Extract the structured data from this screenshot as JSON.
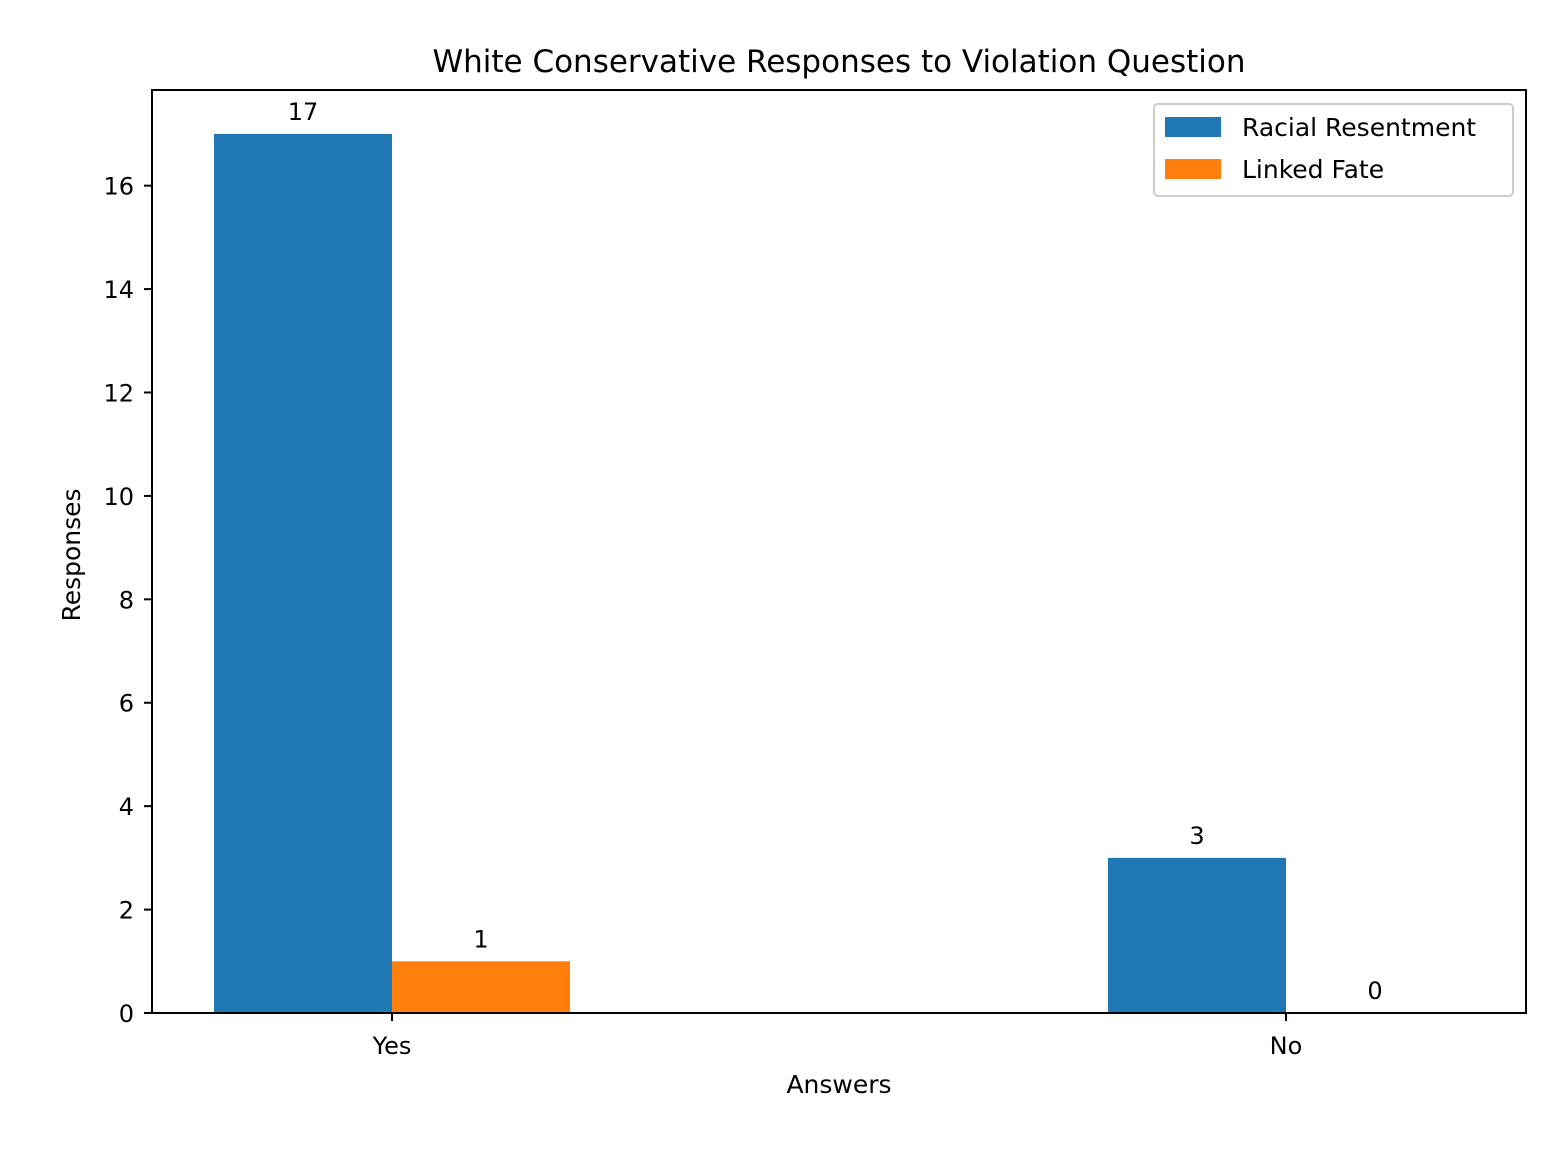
{
  "chart_data": {
    "type": "bar",
    "title": "White Conservative Responses to Violation Question",
    "xlabel": "Answers",
    "ylabel": "Responses",
    "categories": [
      "Yes",
      "No"
    ],
    "series": [
      {
        "name": "Racial Resentment",
        "values": [
          17,
          3
        ],
        "color": "#1f77b4"
      },
      {
        "name": "Linked Fate",
        "values": [
          1,
          0
        ],
        "color": "#ff7f0e"
      }
    ],
    "ylim": [
      0,
      17.85
    ],
    "yticks": [
      0,
      2,
      4,
      6,
      8,
      10,
      12,
      14,
      16
    ],
    "grid": false,
    "legend_position": "top-right"
  }
}
